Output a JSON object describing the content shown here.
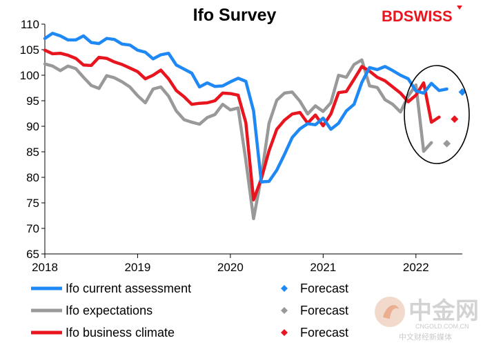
{
  "chart_data": {
    "type": "line",
    "title": "Ifo Survey",
    "ylim": [
      65,
      110
    ],
    "yticks": [
      65,
      70,
      75,
      80,
      85,
      90,
      95,
      100,
      105,
      110
    ],
    "xlim": [
      2018.0,
      2022.5
    ],
    "xticks": [
      "2018",
      "2019",
      "2020",
      "2021",
      "2022"
    ],
    "grid": false,
    "legend_position": "bottom",
    "series": [
      {
        "name": "Ifo current assessment",
        "color": "#1e88f5",
        "values": [
          107.2,
          108.2,
          107.7,
          106.9,
          106.9,
          107.7,
          106.4,
          106.2,
          107.2,
          107.0,
          106.1,
          105.9,
          104.9,
          104.5,
          103.2,
          104.0,
          104.3,
          102.0,
          101.2,
          100.4,
          97.7,
          98.5,
          97.8,
          97.9,
          98.7,
          99.4,
          98.8,
          93.0,
          79.1,
          79.2,
          81.4,
          84.5,
          87.8,
          89.5,
          90.5,
          90.3,
          91.6,
          89.4,
          90.6,
          93.0,
          94.3,
          98.6,
          101.5,
          101.1,
          101.7,
          100.9,
          100.0,
          99.3,
          96.9,
          96.5,
          98.4,
          97.0,
          97.3
        ],
        "forecast": 96.7
      },
      {
        "name": "Ifo expectations",
        "color": "#999999",
        "values": [
          102.2,
          101.8,
          100.9,
          101.8,
          101.3,
          99.6,
          98.0,
          97.4,
          99.9,
          99.5,
          98.7,
          97.7,
          96.0,
          94.6,
          97.3,
          97.7,
          95.9,
          93.0,
          91.3,
          90.8,
          90.4,
          91.7,
          92.3,
          94.3,
          93.2,
          93.6,
          83.3,
          71.9,
          80.1,
          90.6,
          95.1,
          96.5,
          96.7,
          94.9,
          92.4,
          94.0,
          92.9,
          94.6,
          100.0,
          99.6,
          102.1,
          103.0,
          97.9,
          97.6,
          95.2,
          94.3,
          92.8,
          95.9,
          98.1,
          85.1,
          86.8
        ],
        "forecast": 86.6
      },
      {
        "name": "Ifo business climate",
        "color": "#e8141e",
        "values": [
          104.9,
          104.2,
          104.3,
          103.9,
          103.3,
          102.0,
          101.9,
          103.5,
          103.3,
          102.6,
          102.1,
          101.4,
          100.7,
          99.3,
          100.0,
          101.0,
          99.3,
          97.0,
          95.8,
          94.3,
          94.5,
          94.6,
          95.0,
          96.5,
          96.4,
          96.1,
          90.7,
          75.6,
          79.7,
          85.2,
          89.4,
          91.2,
          92.4,
          92.7,
          90.6,
          92.2,
          90.1,
          92.4,
          96.6,
          96.8,
          99.2,
          101.7,
          100.8,
          99.6,
          98.9,
          97.7,
          96.5,
          94.8,
          96.1,
          98.5,
          90.8,
          91.8
        ],
        "forecast": 91.4
      }
    ],
    "legend": [
      {
        "label": "Ifo current assessment",
        "marker_label": "Forecast",
        "color": "#1e88f5"
      },
      {
        "label": "Ifo expectations",
        "marker_label": "Forecast",
        "color": "#999999"
      },
      {
        "label": "Ifo business climate",
        "marker_label": "Forecast",
        "color": "#e8141e"
      }
    ],
    "annotation": "ellipse highlighting recent 2022 values and forecasts"
  },
  "branding": {
    "logo_prefix": "BD",
    "logo_suffix": "SWISS",
    "logo_prefix_color": "#e8141e",
    "logo_suffix_color": "#e8141e",
    "watermark_main": "中金网",
    "watermark_url": "CNGOLD.COM.CN",
    "watermark_sub": "中文财经新媒体"
  }
}
